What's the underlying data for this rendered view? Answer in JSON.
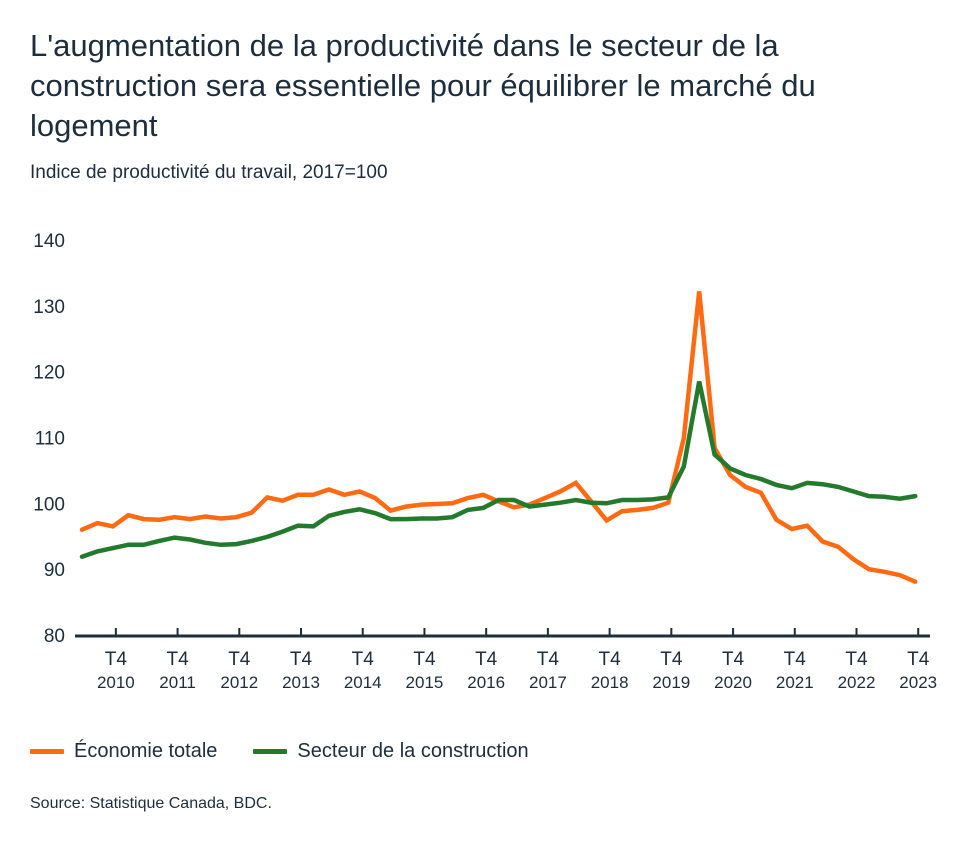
{
  "chart_data": {
    "type": "line",
    "title": "L'augmentation de la productivité dans le secteur de la construction sera essentielle pour équilibrer le marché du logement",
    "subtitle": "Indice de productivité du travail, 2017=100",
    "xlabel": "",
    "ylabel": "",
    "ylim": [
      80,
      140
    ],
    "yticks": [
      "80",
      "90",
      "100",
      "110",
      "120",
      "130",
      "140"
    ],
    "x_start": "T2 2010",
    "x_end": "T4 2023",
    "xticks": [
      {
        "q": "T4",
        "year": "2010"
      },
      {
        "q": "T4",
        "year": "2011"
      },
      {
        "q": "T4",
        "year": "2012"
      },
      {
        "q": "T4",
        "year": "2013"
      },
      {
        "q": "T4",
        "year": "2014"
      },
      {
        "q": "T4",
        "year": "2015"
      },
      {
        "q": "T4",
        "year": "2016"
      },
      {
        "q": "T4",
        "year": "2017"
      },
      {
        "q": "T4",
        "year": "2018"
      },
      {
        "q": "T4",
        "year": "2019"
      },
      {
        "q": "T4",
        "year": "2020"
      },
      {
        "q": "T4",
        "year": "2021"
      },
      {
        "q": "T4",
        "year": "2022"
      },
      {
        "q": "T4",
        "year": "2023"
      }
    ],
    "grid": false,
    "legend_position": "bottom-left",
    "series": [
      {
        "name": "Économie totale",
        "color": "#ff6a13",
        "values": [
          96.0,
          97.0,
          96.5,
          98.2,
          97.6,
          97.5,
          97.9,
          97.6,
          98.0,
          97.7,
          97.9,
          98.6,
          100.9,
          100.4,
          101.3,
          101.3,
          102.1,
          101.3,
          101.8,
          100.8,
          98.9,
          99.5,
          99.8,
          99.9,
          100.0,
          100.8,
          101.3,
          100.3,
          99.4,
          99.8,
          100.8,
          101.8,
          103.1,
          100.3,
          97.4,
          98.8,
          99.0,
          99.3,
          100.1,
          109.9,
          132.2,
          108.4,
          104.3,
          102.5,
          101.6,
          97.5,
          96.1,
          96.6,
          94.2,
          93.4,
          91.5,
          90.0,
          89.6,
          89.1,
          88.1
        ]
      },
      {
        "name": "Secteur de la construction",
        "color": "#23792c",
        "values": [
          91.9,
          92.7,
          93.2,
          93.7,
          93.7,
          94.3,
          94.8,
          94.5,
          94.0,
          93.7,
          93.8,
          94.3,
          94.9,
          95.7,
          96.6,
          96.5,
          98.1,
          98.7,
          99.1,
          98.5,
          97.6,
          97.6,
          97.7,
          97.7,
          97.9,
          99.0,
          99.3,
          100.5,
          100.5,
          99.5,
          99.8,
          100.1,
          100.5,
          100.1,
          100.0,
          100.5,
          100.5,
          100.6,
          100.9,
          105.6,
          118.5,
          107.4,
          105.3,
          104.3,
          103.7,
          102.8,
          102.3,
          103.1,
          102.9,
          102.5,
          101.8,
          101.1,
          101.0,
          100.7,
          101.1
        ]
      }
    ],
    "source": "Source: Statistique Canada, BDC."
  },
  "colors": {
    "text": "#1d2d3c",
    "axis": "#1d2d3c"
  }
}
